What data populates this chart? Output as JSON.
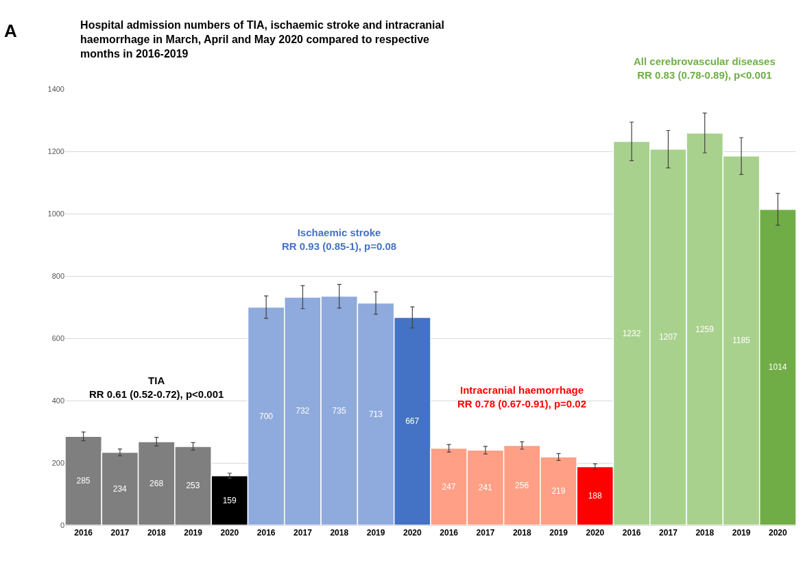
{
  "chart_data": {
    "type": "bar",
    "title": "Hospital admission numbers of TIA, ischaemic stroke and intracranial haemorrhage in March, April and May 2020 compared to respective months in 2016-2019",
    "categories": [
      "2016",
      "2017",
      "2018",
      "2019",
      "2020",
      "2016",
      "2017",
      "2018",
      "2019",
      "2020",
      "2016",
      "2017",
      "2018",
      "2019",
      "2020",
      "2016",
      "2017",
      "2018",
      "2019",
      "2020"
    ],
    "values": [
      285,
      234,
      268,
      253,
      159,
      700,
      732,
      735,
      713,
      667,
      247,
      241,
      256,
      219,
      188,
      1232,
      1207,
      1259,
      1185,
      1014
    ],
    "errors": [
      14,
      11,
      14,
      12,
      8,
      36,
      37,
      38,
      36,
      34,
      12,
      12,
      12,
      11,
      9,
      62,
      60,
      64,
      59,
      51
    ],
    "colors": [
      "#7f7f7f",
      "#7f7f7f",
      "#7f7f7f",
      "#7f7f7f",
      "#000000",
      "#8faadc",
      "#8faadc",
      "#8faadc",
      "#8faadc",
      "#4472c4",
      "#ff9f86",
      "#ff9f86",
      "#ff9f86",
      "#ff9f86",
      "#ff0000",
      "#a9d18e",
      "#a9d18e",
      "#a9d18e",
      "#a9d18e",
      "#70ad47"
    ],
    "data_labels": true,
    "ylim": [
      0,
      1400
    ],
    "yticks": [
      0,
      200,
      400,
      600,
      800,
      1000,
      1200,
      1400
    ],
    "grid": "y",
    "annotations": [
      "A",
      "TIA\nRR 0.61 (0.52-0.72), p<0.001",
      "Ischaemic stroke\nRR 0.93 (0.85-1), p=0.08",
      "Intracranial haemorrhage\nRR 0.78 (0.67-0.91), p=0.02",
      "All cerebrovascular diseases\nRR 0.83 (0.78-0.89), p<0.001"
    ]
  }
}
